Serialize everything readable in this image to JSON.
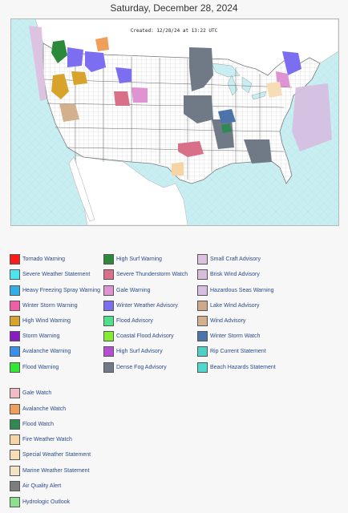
{
  "page": {
    "date_title": "Saturday, December 28, 2024",
    "created_stamp": "Created: 12/28/24 at 13:22 UTC"
  },
  "map": {
    "ocean_color": "#c9eef2",
    "land_color": "#ffffff",
    "county_line_color": "#b5b5b5",
    "highlighted_products": [
      "Dense Fog Advisory",
      "Winter Weather Advisory",
      "Small Craft Advisory",
      "Hazardous Seas Warning",
      "Severe Thunderstorm Watch",
      "High Wind Warning",
      "Flood Warning"
    ]
  },
  "legend": {
    "col1": [
      {
        "label": "Tornado Warning",
        "color": "#ff1a1a"
      },
      {
        "label": "Severe Weather Statement",
        "color": "#4ee4ee"
      },
      {
        "label": "Heavy Freezing Spray Warning",
        "color": "#33aee6"
      },
      {
        "label": "Winter Storm Warning",
        "color": "#ef5ea6"
      },
      {
        "label": "High Wind Warning",
        "color": "#d7a32a"
      },
      {
        "label": "Storm Warning",
        "color": "#8a1bc0"
      },
      {
        "label": "Avalanche Warning",
        "color": "#3a8fe8"
      },
      {
        "label": "Flood Warning",
        "color": "#33e833"
      }
    ],
    "col2": [
      {
        "label": "High Surf Warning",
        "color": "#2a8a3a"
      },
      {
        "label": "Severe Thunderstorm Watch",
        "color": "#d8708a"
      },
      {
        "label": "Gale Warning",
        "color": "#e093d2"
      },
      {
        "label": "Winter Weather Advisory",
        "color": "#7b6ef0"
      },
      {
        "label": "Flood Advisory",
        "color": "#4fe08c"
      },
      {
        "label": "Coastal Flood Advisory",
        "color": "#84ec33"
      },
      {
        "label": "High Surf Advisory",
        "color": "#b44ed2"
      },
      {
        "label": "Dense Fog Advisory",
        "color": "#6f7a86"
      }
    ],
    "col3": [
      {
        "label": "Small Craft Advisory",
        "color": "#dec0e0"
      },
      {
        "label": "Brisk Wind Advisory",
        "color": "#d9bed9"
      },
      {
        "label": "Hazardous Seas Warning",
        "color": "#d6bfe0"
      },
      {
        "label": "Lake Wind Advisory",
        "color": "#cfa98c"
      },
      {
        "label": "Wind Advisory",
        "color": "#d4b18e"
      },
      {
        "label": "Winter Storm Watch",
        "color": "#4c74a8"
      },
      {
        "label": "Rip Current Statement",
        "color": "#4fd0c4"
      },
      {
        "label": "Beach Hazards Statement",
        "color": "#4fd8cc"
      }
    ],
    "col4": [
      {
        "label": "Gale Watch",
        "color": "#f2bcc6"
      },
      {
        "label": "Avalanche Watch",
        "color": "#ef9f5a"
      },
      {
        "label": "Flood Watch",
        "color": "#2e8a52"
      },
      {
        "label": "Fire Weather Watch",
        "color": "#f7d4a4"
      },
      {
        "label": "Special Weather Statement",
        "color": "#f6ddb6"
      },
      {
        "label": "Marine Weather Statement",
        "color": "#f3e2c6"
      },
      {
        "label": "Air Quality Alert",
        "color": "#7d7d7d"
      },
      {
        "label": "Hydrologic Outlook",
        "color": "#8ee08e"
      }
    ]
  }
}
